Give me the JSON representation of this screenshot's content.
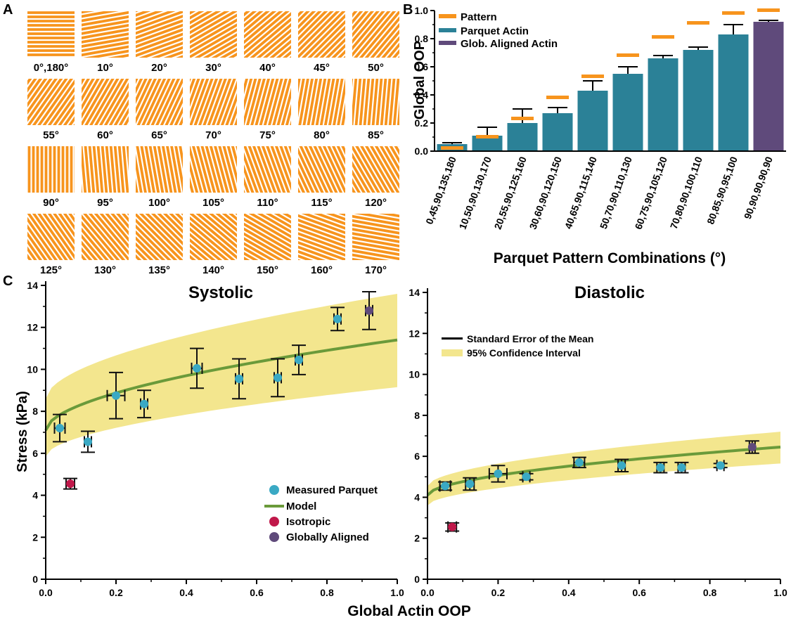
{
  "panel_labels": [
    "A",
    "B",
    "C"
  ],
  "colors": {
    "pattern": "#f7941d",
    "parquet_actin": "#2b8197",
    "glob_aligned": "#5f4a7b",
    "model": "#6a9a3a",
    "ci_band": "#f3e68e",
    "measured_point": "#3aa9c4",
    "isotropic_point": "#c0184a",
    "globally_aligned_point": "#5f4a7b"
  },
  "panel_a": {
    "rows": [
      [
        "0°,180°",
        "10°",
        "20°",
        "30°",
        "40°",
        "45°",
        "50°"
      ],
      [
        "55°",
        "60°",
        "65°",
        "70°",
        "75°",
        "80°",
        "85°"
      ],
      [
        "90°",
        "95°",
        "100°",
        "105°",
        "110°",
        "115°",
        "120°"
      ],
      [
        "125°",
        "130°",
        "135°",
        "140°",
        "150°",
        "160°",
        "170°"
      ]
    ],
    "angles": [
      [
        0,
        10,
        20,
        30,
        40,
        45,
        50
      ],
      [
        55,
        60,
        65,
        70,
        75,
        80,
        85
      ],
      [
        90,
        95,
        100,
        105,
        110,
        115,
        120
      ],
      [
        125,
        130,
        135,
        140,
        150,
        160,
        170
      ]
    ]
  },
  "chart_data": [
    {
      "type": "bar",
      "panel": "B",
      "xlabel": "Parquet Pattern Combinations (°)",
      "ylabel": "Global OOP",
      "ylim": [
        0,
        1.0
      ],
      "yticks": [
        "0.0",
        "0.2",
        "0.4",
        "0.6",
        "0.8",
        "1.0"
      ],
      "categories": [
        "0,45,90,135,180",
        "10,50,90,130,170",
        "20,55,90,125,160",
        "30,60,90,120,150",
        "40,65,90,115,140",
        "50,70,90,110,130",
        "60,75,90,105,120",
        "70,80,90,100,110",
        "80,85,90,95,100",
        "90,90,90,90,90"
      ],
      "legend": [
        "Pattern",
        "Parquet Actin",
        "Glob. Aligned Actin"
      ],
      "legend_position": "top-left",
      "series": [
        {
          "name": "Parquet Actin",
          "values": [
            0.05,
            0.11,
            0.2,
            0.27,
            0.43,
            0.55,
            0.66,
            0.72,
            0.83,
            null
          ],
          "errors": [
            0.01,
            0.06,
            0.1,
            0.04,
            0.07,
            0.05,
            0.02,
            0.02,
            0.07,
            null
          ]
        },
        {
          "name": "Glob. Aligned Actin",
          "values": [
            null,
            null,
            null,
            null,
            null,
            null,
            null,
            null,
            null,
            0.92
          ],
          "errors": [
            null,
            null,
            null,
            null,
            null,
            null,
            null,
            null,
            null,
            0.01
          ]
        },
        {
          "name": "Pattern",
          "values": [
            0.02,
            0.1,
            0.23,
            0.38,
            0.53,
            0.68,
            0.81,
            0.91,
            0.98,
            1.0
          ]
        }
      ]
    },
    {
      "type": "scatter",
      "panel": "C",
      "title": "Systolic",
      "xlabel": "Global Actin OOP",
      "ylabel": "Stress (kPa)",
      "xlim": [
        0,
        1.0
      ],
      "ylim": [
        0,
        14
      ],
      "xticks": [
        "0.0",
        "0.2",
        "0.4",
        "0.6",
        "0.8",
        "1.0"
      ],
      "yticks": [
        "0",
        "2",
        "4",
        "6",
        "8",
        "10",
        "12",
        "14"
      ],
      "legend": [
        "Measured Parquet",
        "Model",
        "Isotropic",
        "Globally Aligned"
      ],
      "legend_position": "bottom-right",
      "measured_parquet": [
        {
          "x": 0.04,
          "y": 7.2,
          "xerr": 0.015,
          "yerr": 0.65
        },
        {
          "x": 0.12,
          "y": 6.55,
          "xerr": 0.01,
          "yerr": 0.5
        },
        {
          "x": 0.2,
          "y": 8.75,
          "xerr": 0.025,
          "yerr": 1.1
        },
        {
          "x": 0.28,
          "y": 8.35,
          "xerr": 0.01,
          "yerr": 0.65
        },
        {
          "x": 0.43,
          "y": 10.05,
          "xerr": 0.015,
          "yerr": 0.95
        },
        {
          "x": 0.55,
          "y": 9.55,
          "xerr": 0.01,
          "yerr": 0.95
        },
        {
          "x": 0.66,
          "y": 9.6,
          "xerr": 0.01,
          "yerr": 0.9
        },
        {
          "x": 0.72,
          "y": 10.45,
          "xerr": 0.01,
          "yerr": 0.7
        },
        {
          "x": 0.83,
          "y": 12.4,
          "xerr": 0.01,
          "yerr": 0.55
        }
      ],
      "isotropic": {
        "x": 0.07,
        "y": 4.55,
        "xerr": 0.012,
        "yerr": 0.25
      },
      "globally_aligned": {
        "x": 0.92,
        "y": 12.8,
        "xerr": 0.01,
        "yerr": 0.9
      },
      "model": {
        "a": 7.1,
        "b": 4.3,
        "p": 0.55
      },
      "ci_lower": {
        "a": 5.85,
        "b": 3.3,
        "p": 0.55
      },
      "ci_upper": {
        "a": 8.6,
        "b": 5.0,
        "p": 0.55
      }
    },
    {
      "type": "scatter",
      "panel": "C",
      "title": "Diastolic",
      "xlabel": "Global Actin OOP",
      "ylabel": "",
      "xlim": [
        0,
        1.0
      ],
      "ylim": [
        0,
        14
      ],
      "xticks": [
        "0.0",
        "0.2",
        "0.4",
        "0.6",
        "0.8",
        "1.0"
      ],
      "yticks": [
        "0",
        "2",
        "4",
        "6",
        "8",
        "10",
        "12",
        "14"
      ],
      "legend": [
        "Standard Error of the Mean",
        "95% Confidence Interval"
      ],
      "legend_position": "top-left",
      "measured_parquet": [
        {
          "x": 0.05,
          "y": 4.55,
          "xerr": 0.015,
          "yerr": 0.2
        },
        {
          "x": 0.12,
          "y": 4.65,
          "xerr": 0.012,
          "yerr": 0.3
        },
        {
          "x": 0.2,
          "y": 5.15,
          "xerr": 0.025,
          "yerr": 0.4
        },
        {
          "x": 0.28,
          "y": 5.0,
          "xerr": 0.01,
          "yerr": 0.15
        },
        {
          "x": 0.43,
          "y": 5.7,
          "xerr": 0.015,
          "yerr": 0.25
        },
        {
          "x": 0.55,
          "y": 5.55,
          "xerr": 0.01,
          "yerr": 0.3
        },
        {
          "x": 0.66,
          "y": 5.45,
          "xerr": 0.01,
          "yerr": 0.25
        },
        {
          "x": 0.72,
          "y": 5.45,
          "xerr": 0.01,
          "yerr": 0.25
        },
        {
          "x": 0.83,
          "y": 5.55,
          "xerr": 0.01,
          "yerr": 0.1
        }
      ],
      "isotropic": {
        "x": 0.07,
        "y": 2.55,
        "xerr": 0.012,
        "yerr": 0.2
      },
      "globally_aligned": {
        "x": 0.92,
        "y": 6.45,
        "xerr": 0.008,
        "yerr": 0.3
      },
      "model": {
        "a": 4.1,
        "b": 2.35,
        "p": 0.55
      },
      "ci_lower": {
        "a": 3.6,
        "b": 2.05,
        "p": 0.55
      },
      "ci_upper": {
        "a": 4.55,
        "b": 2.65,
        "p": 0.55
      }
    }
  ]
}
